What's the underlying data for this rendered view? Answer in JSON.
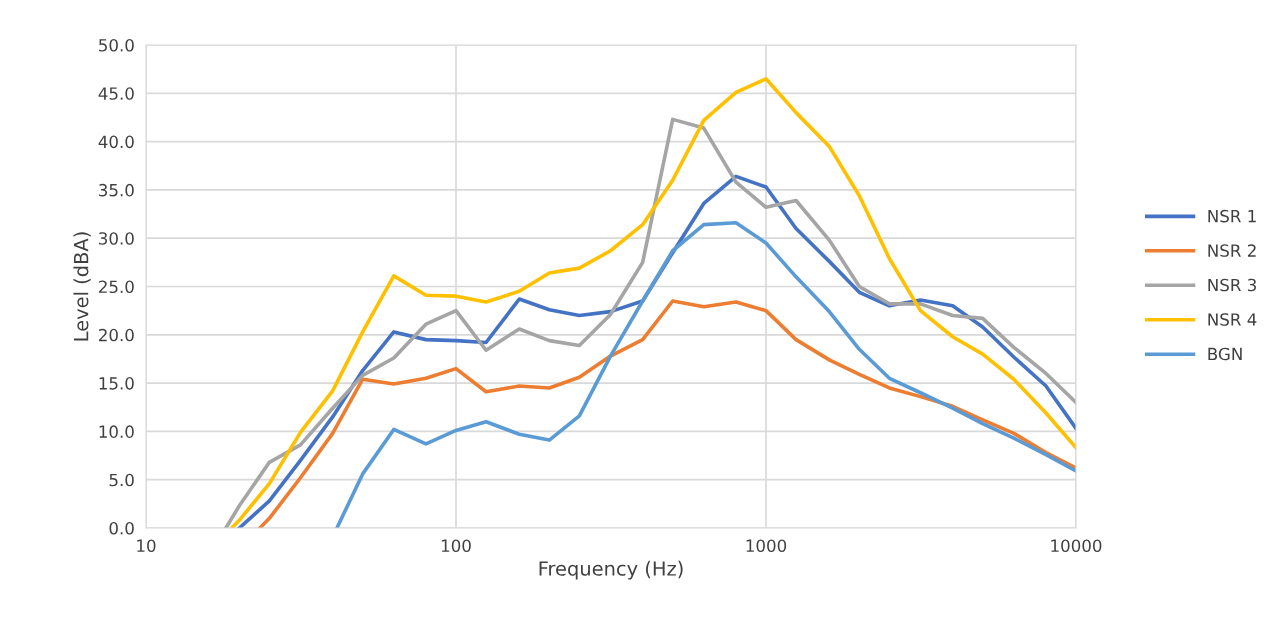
{
  "chart_data": {
    "type": "line",
    "xlabel": "Frequency (Hz)",
    "ylabel": "Level (dBA)",
    "log": "x",
    "xlim": [
      10,
      10000
    ],
    "xticks": [
      10,
      100,
      1000,
      10000
    ],
    "ylim": [
      0,
      50
    ],
    "yticks": [
      {
        "value": 0,
        "label": "0.0"
      },
      {
        "value": 5,
        "label": "5.0"
      },
      {
        "value": 10,
        "label": "10.0"
      },
      {
        "value": 15,
        "label": "15.0"
      },
      {
        "value": 20,
        "label": "20.0"
      },
      {
        "value": 25,
        "label": "25.0"
      },
      {
        "value": 30,
        "label": "30.0"
      },
      {
        "value": 35,
        "label": "35.0"
      },
      {
        "value": 40,
        "label": "40.0"
      },
      {
        "value": 45,
        "label": "45.0"
      },
      {
        "value": 50,
        "label": "50.0"
      }
    ],
    "grid": true,
    "legend": "right",
    "marker": "none",
    "line_style": "solid",
    "series": [
      {
        "name": "NSR 1",
        "color": "#4472c4",
        "x": [
          20,
          25,
          31.5,
          40,
          50,
          63,
          80,
          100,
          125,
          160,
          200,
          250,
          315,
          400,
          500,
          630,
          800,
          1000,
          1250,
          1600,
          2000,
          2500,
          3150,
          4000,
          5000,
          6300,
          8000,
          10000
        ],
        "values": [
          0,
          2.8,
          7.0,
          11.5,
          16.3,
          20.3,
          19.5,
          19.4,
          19.2,
          23.7,
          22.6,
          22.0,
          22.4,
          23.5,
          28.5,
          33.6,
          36.4,
          35.3,
          31.0,
          27.6,
          24.4,
          23.0,
          23.6,
          23.0,
          20.8,
          17.7,
          14.7,
          10.3
        ]
      },
      {
        "name": "NSR 2",
        "color": "#ed7d31",
        "x": [
          23.3,
          25,
          31.5,
          40,
          50,
          63,
          80,
          100,
          125,
          160,
          200,
          250,
          315,
          400,
          500,
          630,
          800,
          1000,
          1250,
          1600,
          2000,
          2500,
          3150,
          4000,
          5000,
          6300,
          8000,
          10000
        ],
        "values": [
          0,
          1.0,
          5.2,
          9.8,
          15.4,
          14.9,
          15.5,
          16.5,
          14.1,
          14.7,
          14.5,
          15.6,
          17.8,
          19.5,
          23.5,
          22.9,
          23.4,
          22.5,
          19.5,
          17.4,
          15.9,
          14.5,
          13.6,
          12.6,
          11.2,
          9.8,
          7.8,
          6.2
        ]
      },
      {
        "name": "NSR 3",
        "color": "#a5a5a5",
        "x": [
          18.1,
          20,
          25,
          31.5,
          40,
          50,
          63,
          80,
          100,
          125,
          160,
          200,
          250,
          315,
          400,
          500,
          630,
          800,
          1000,
          1250,
          1600,
          2000,
          2500,
          3150,
          4000,
          5000,
          6300,
          8000,
          10000
        ],
        "values": [
          0,
          2.3,
          6.8,
          8.6,
          12.4,
          15.8,
          17.6,
          21.1,
          22.5,
          18.4,
          20.6,
          19.4,
          18.9,
          22.1,
          27.5,
          42.3,
          41.4,
          35.8,
          33.2,
          33.9,
          29.8,
          25.0,
          23.2,
          23.2,
          22.0,
          21.7,
          18.7,
          16.0,
          13.0
        ]
      },
      {
        "name": "NSR 4",
        "color": "#ffc000",
        "x": [
          18.9,
          20,
          25,
          31.5,
          40,
          50,
          63,
          80,
          100,
          125,
          160,
          200,
          250,
          315,
          400,
          500,
          630,
          800,
          1000,
          1250,
          1600,
          2000,
          2500,
          3150,
          4000,
          5000,
          6300,
          8000,
          10000
        ],
        "values": [
          0,
          0.8,
          4.6,
          9.9,
          14.2,
          20.3,
          26.1,
          24.1,
          24.0,
          23.4,
          24.5,
          26.4,
          26.9,
          28.7,
          31.4,
          36.0,
          42.2,
          45.1,
          46.5,
          43.0,
          39.5,
          34.4,
          27.9,
          22.5,
          19.8,
          18.0,
          15.4,
          11.9,
          8.3
        ]
      },
      {
        "name": "BGN",
        "color": "#5b9bd5",
        "x": [
          41.3,
          50,
          63,
          80,
          100,
          125,
          160,
          200,
          250,
          315,
          400,
          500,
          630,
          800,
          1000,
          1250,
          1600,
          2000,
          2500,
          3150,
          4000,
          5000,
          6300,
          8000,
          10000
        ],
        "values": [
          0,
          5.6,
          10.2,
          8.7,
          10.1,
          11.0,
          9.7,
          9.1,
          11.6,
          17.8,
          23.5,
          28.7,
          31.4,
          31.6,
          29.5,
          26.0,
          22.4,
          18.5,
          15.5,
          14.0,
          12.4,
          10.8,
          9.3,
          7.6,
          5.9
        ]
      }
    ]
  }
}
